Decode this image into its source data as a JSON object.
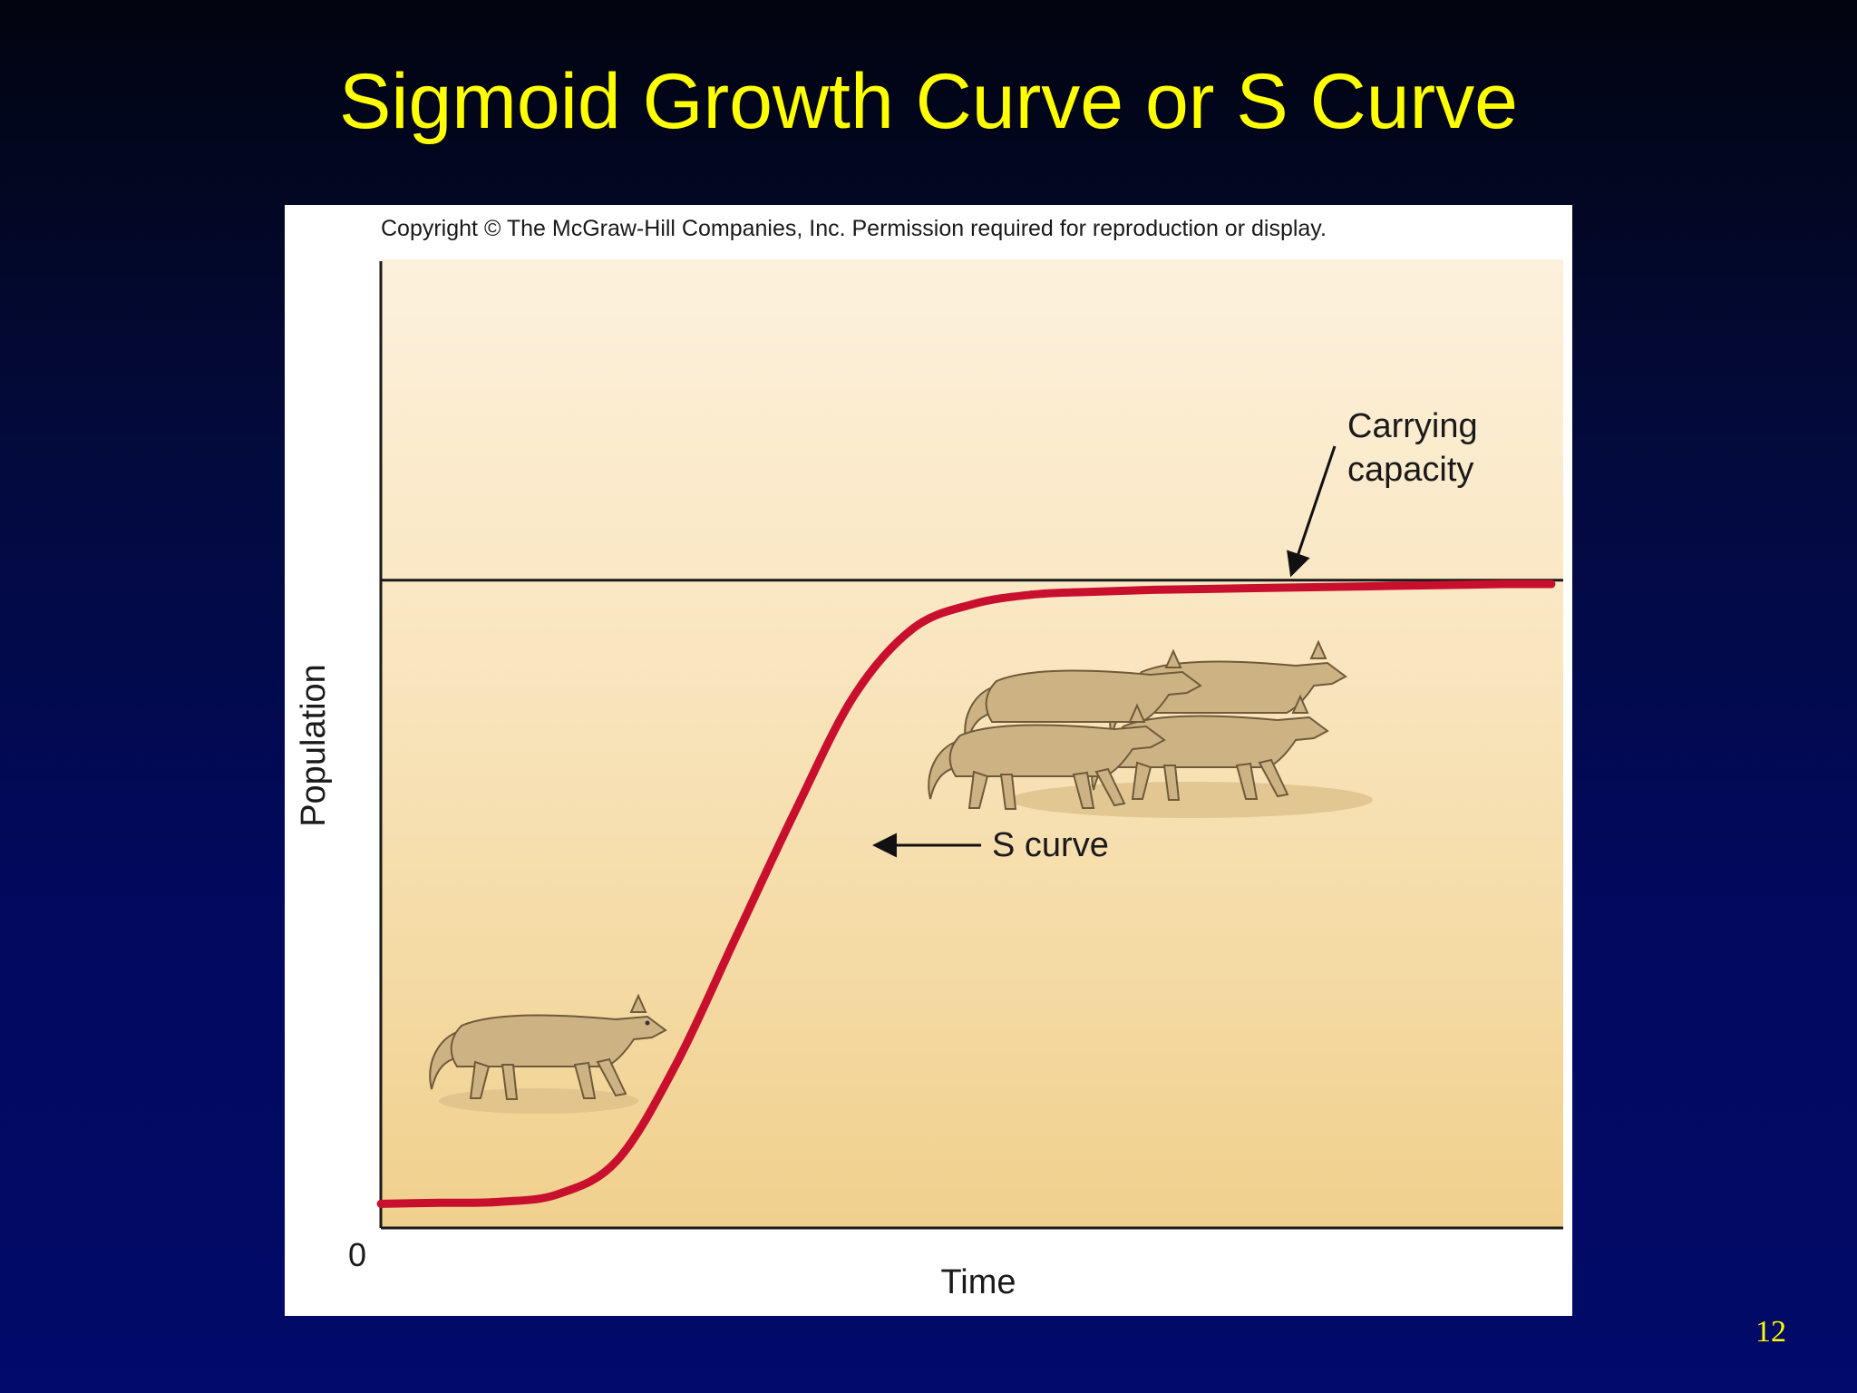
{
  "slide": {
    "title": "Sigmoid Growth Curve or S Curve",
    "number": "12",
    "colors": {
      "title": "#ffff00",
      "background_top": "#02040f",
      "background_bottom": "#020a6a"
    }
  },
  "figure": {
    "copyright": "Copyright © The McGraw-Hill Companies, Inc. Permission required for reproduction or display.",
    "illustrations": [
      "single-animal-icon",
      "group-of-animals-icon"
    ]
  },
  "chart_data": {
    "type": "line",
    "xlabel": "Time",
    "ylabel": "Population",
    "origin_label": "0",
    "xlim": [
      0,
      100
    ],
    "ylim": [
      0,
      100
    ],
    "grid": false,
    "carrying_capacity": 67,
    "series": [
      {
        "color": "#c8102e",
        "x": [
          0,
          5,
          10,
          15,
          20,
          25,
          30,
          35,
          40,
          45,
          50,
          55,
          60,
          65,
          70,
          75,
          80,
          85,
          90,
          95,
          99
        ],
        "y": [
          2.5,
          2.6,
          2.7,
          3.5,
          7,
          17,
          30,
          43,
          55,
          62,
          64.5,
          65.5,
          65.8,
          66,
          66.1,
          66.2,
          66.3,
          66.4,
          66.5,
          66.6,
          66.6
        ]
      }
    ],
    "annotations": [
      {
        "text_lines": [
          "Carrying",
          "capacity"
        ],
        "points_to": {
          "x": 77,
          "y": 67
        }
      },
      {
        "text": "S curve",
        "points_to": {
          "x": 41,
          "y": 39
        }
      }
    ]
  }
}
